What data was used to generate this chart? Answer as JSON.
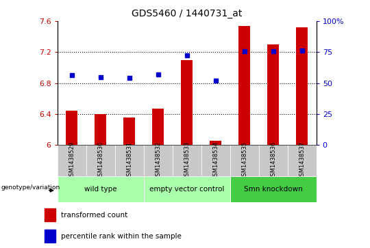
{
  "title": "GDS5460 / 1440731_at",
  "samples": [
    "GSM1438529",
    "GSM1438530",
    "GSM1438531",
    "GSM1438532",
    "GSM1438533",
    "GSM1438534",
    "GSM1438535",
    "GSM1438536",
    "GSM1438537"
  ],
  "transformed_count": [
    6.44,
    6.4,
    6.36,
    6.47,
    7.1,
    6.06,
    7.54,
    7.3,
    7.52
  ],
  "percentile_rank": [
    6.9,
    6.88,
    6.87,
    6.91,
    7.16,
    6.83,
    7.21,
    7.21,
    7.22
  ],
  "ylim_left": [
    6.0,
    7.6
  ],
  "ylim_right": [
    0,
    100
  ],
  "yticks_left": [
    6.0,
    6.4,
    6.8,
    7.2,
    7.6
  ],
  "yticks_right": [
    0,
    25,
    50,
    75,
    100
  ],
  "ytick_labels_left": [
    "6",
    "6.4",
    "6.8",
    "7.2",
    "7.6"
  ],
  "ytick_labels_right": [
    "0",
    "25",
    "50",
    "75",
    "100%"
  ],
  "bar_color": "#cc0000",
  "dot_color": "#0000cc",
  "bar_bottom": 6.0,
  "groups": [
    {
      "label": "wild type",
      "samples": [
        0,
        1,
        2
      ],
      "color": "#aaffaa"
    },
    {
      "label": "empty vector control",
      "samples": [
        3,
        4,
        5
      ],
      "color": "#aaffaa"
    },
    {
      "label": "Smn knockdown",
      "samples": [
        6,
        7,
        8
      ],
      "color": "#44cc44"
    }
  ],
  "genotype_label": "genotype/variation",
  "legend_bar_label": "transformed count",
  "legend_dot_label": "percentile rank within the sample",
  "tick_area_bg": "#c8c8c8",
  "title_fontsize": 10,
  "tick_fontsize": 8,
  "left_tick_color": "#cc0000",
  "right_tick_color": "#0000cc",
  "grid_lines": [
    6.4,
    6.8,
    7.2
  ]
}
